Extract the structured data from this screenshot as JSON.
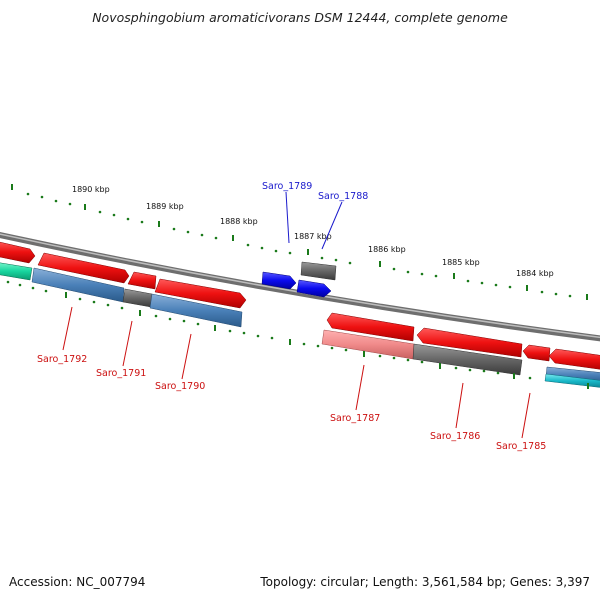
{
  "title": "Novosphingobium aromaticivorans DSM 12444, complete genome",
  "footer": {
    "accession": "Accession: NC_007794",
    "topology": "Topology: circular; Length: 3,561,584 bp; Genes: 3,397"
  },
  "colors": {
    "backbone": "#8a8a8a",
    "tick": "#1a7a1a",
    "forward_label": "#1a1acc",
    "reverse_label": "#cc1111",
    "red": "#ee1111",
    "pink": "#f08a8a",
    "gray": "#666666",
    "blue": "#0a0aee",
    "steelblue": "#4a80b8",
    "cyan": "#18b8c8",
    "teal": "#19d6a0"
  },
  "kbp_labels": [
    "1890 kbp",
    "1889 kbp",
    "1888 kbp",
    "1887 kbp",
    "1886 kbp",
    "1885 kbp",
    "1884 kbp"
  ],
  "genes": {
    "forward": [
      {
        "id": "Saro_1789",
        "label": "Saro_1789",
        "color": "blue"
      },
      {
        "id": "Saro_1788",
        "label": "Saro_1788",
        "color": "blue"
      }
    ],
    "reverse": [
      {
        "id": "Saro_1792",
        "label": "Saro_1792",
        "color": "red"
      },
      {
        "id": "Saro_1791",
        "label": "Saro_1791",
        "color": "red"
      },
      {
        "id": "Saro_1790",
        "label": "Saro_1790",
        "color": "red"
      },
      {
        "id": "Saro_1787",
        "label": "Saro_1787",
        "color": "red"
      },
      {
        "id": "Saro_1786",
        "label": "Saro_1786",
        "color": "red"
      },
      {
        "id": "Saro_1785",
        "label": "Saro_1785",
        "color": "red"
      }
    ]
  }
}
